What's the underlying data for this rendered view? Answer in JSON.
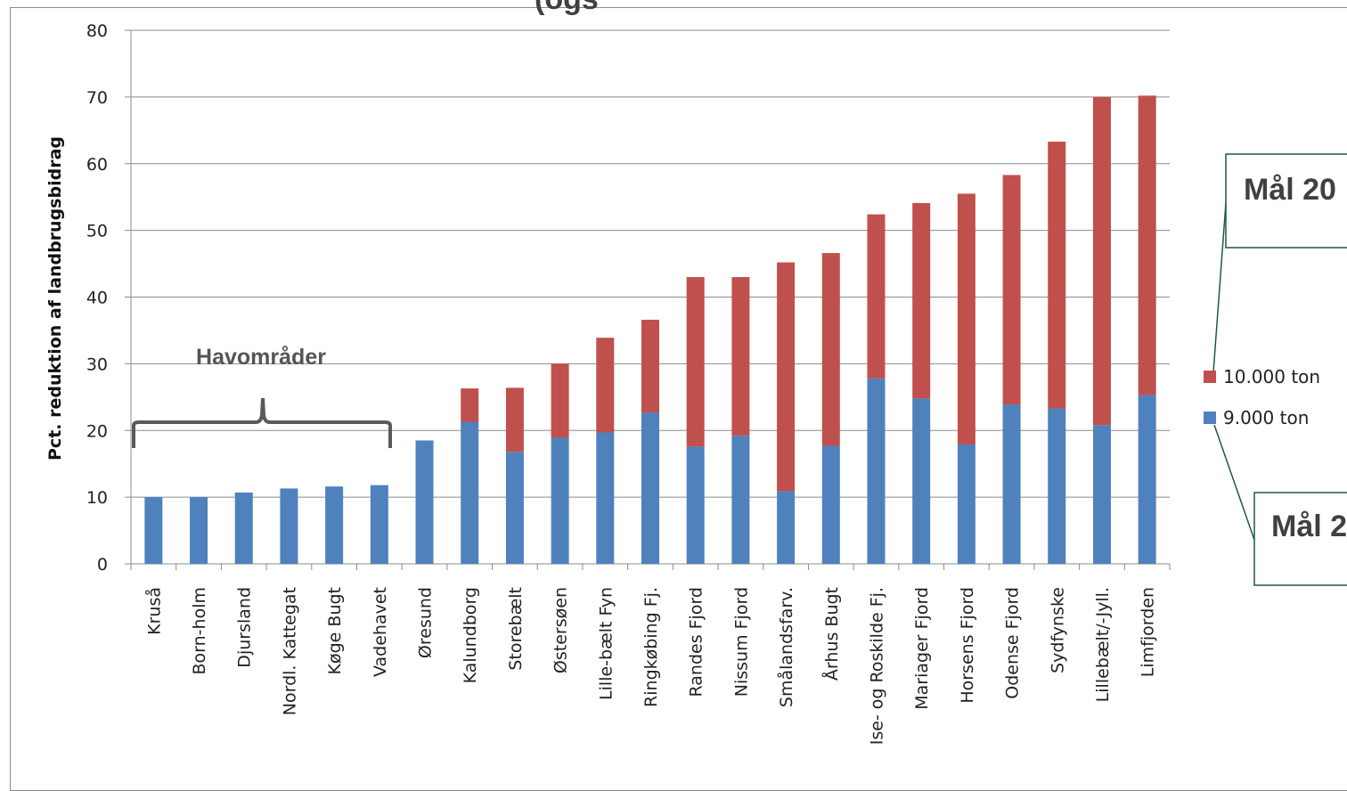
{
  "page_title_fragment": "(ogs",
  "chart_data": {
    "type": "bar",
    "stacked": true,
    "categories": [
      "Kruså",
      "Born-holm",
      "Djursland",
      "Nordl. Kattegat",
      "Køge Bugt",
      "Vadehavet",
      "Øresund",
      "Kalundborg",
      "Storebælt",
      "Østersøen",
      "Lille-bælt Fyn",
      "Ringkøbing Fj.",
      "Randes Fjord",
      "Nissum Fjord",
      "Smålandsfarv.",
      "Århus Bugt",
      "Ise- og Roskilde Fj.",
      "Mariager Fjord",
      "Horsens Fjord",
      "Odense Fjord",
      "Sydfynske",
      "Lillebælt/-Jyll.",
      "Limfjorden"
    ],
    "series": [
      {
        "name": "9.000 ton",
        "color": "#4f81bd",
        "values": [
          10,
          10,
          10.7,
          11.3,
          11.6,
          11.8,
          18.5,
          21.3,
          16.8,
          18.9,
          19.7,
          22.7,
          17.6,
          19.2,
          10.9,
          17.7,
          27.8,
          24.8,
          17.9,
          23.9,
          23.3,
          20.8,
          25.3
        ]
      },
      {
        "name": "10.000 ton",
        "color": "#c0504d",
        "values": [
          0,
          0,
          0,
          0,
          0,
          0,
          0,
          5.0,
          9.6,
          11.1,
          14.2,
          13.9,
          25.4,
          23.8,
          34.3,
          28.9,
          24.6,
          29.3,
          37.6,
          34.4,
          40.0,
          49.2,
          44.9
        ]
      }
    ],
    "ylabel": "Pct. reduktion af landbrugsbidrag",
    "xlabel": "",
    "ylim": [
      0,
      80
    ],
    "yticks": [
      0,
      10,
      20,
      30,
      40,
      50,
      60,
      70,
      80
    ],
    "grid": true,
    "legend_position": "right",
    "annotations": [
      {
        "text": "Havområder"
      },
      {
        "text": "Mål 20"
      },
      {
        "text": "Mål 2"
      }
    ]
  }
}
